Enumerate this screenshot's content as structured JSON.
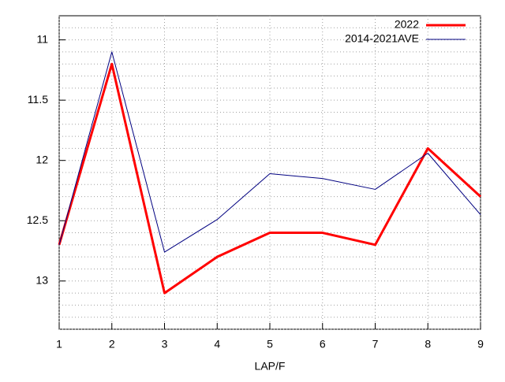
{
  "chart_data": {
    "type": "line",
    "xlabel": "LAP/F",
    "x": [
      1,
      2,
      3,
      4,
      5,
      6,
      7,
      8,
      9
    ],
    "series": [
      {
        "name": "2022",
        "color": "#ff0000",
        "width": 3,
        "values": [
          12.7,
          11.2,
          13.1,
          12.8,
          12.6,
          12.6,
          12.7,
          11.9,
          12.3
        ]
      },
      {
        "name": "2014-2021AVE",
        "color": "#000080",
        "width": 1,
        "values": [
          12.7,
          11.1,
          12.76,
          12.49,
          12.11,
          12.15,
          12.24,
          11.94,
          12.45
        ]
      }
    ],
    "xlim": [
      1,
      9
    ],
    "xticks": [
      1,
      2,
      3,
      4,
      5,
      6,
      7,
      8,
      9
    ],
    "ylim": [
      13.4,
      10.8
    ],
    "yticks": [
      11,
      11.5,
      12,
      12.5,
      13
    ],
    "y_minor_divisions": 5,
    "grid": true,
    "legend": "top-right"
  }
}
